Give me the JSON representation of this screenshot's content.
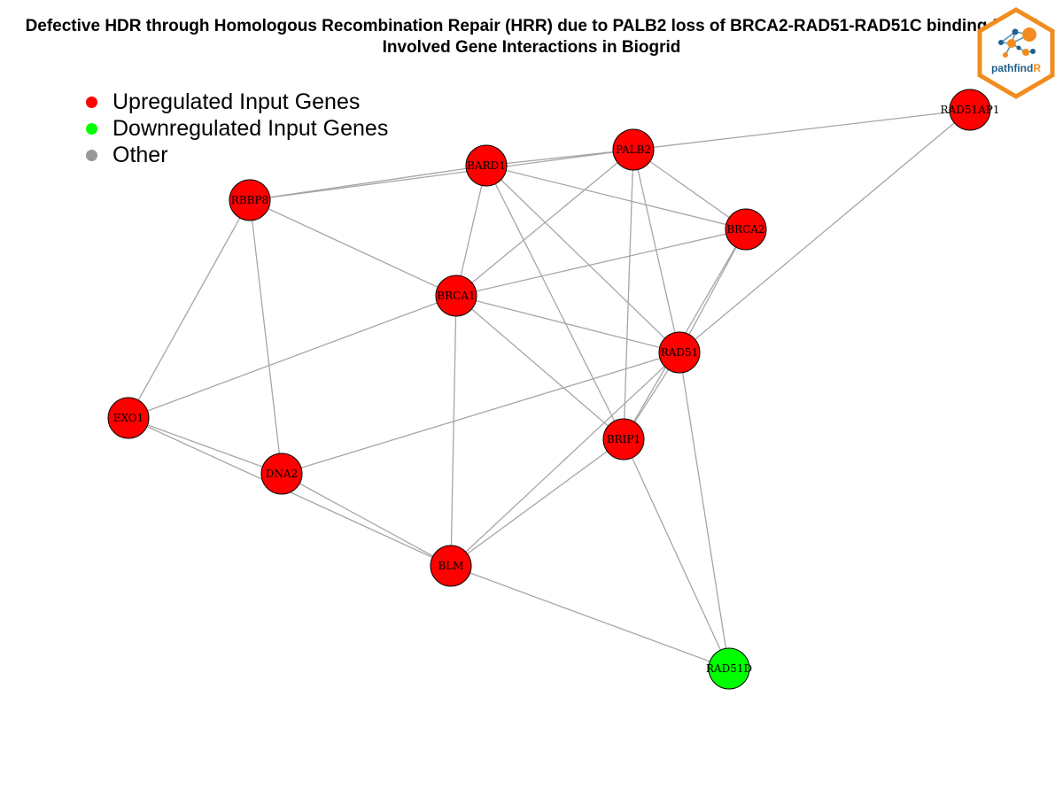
{
  "title": {
    "line1": "Defective HDR through Homologous Recombination Repair (HRR) due to PALB2 loss of BRCA2-RAD51-RAD51C binding functi",
    "line2": "Involved Gene Interactions in Biogrid"
  },
  "legend": [
    {
      "label": "Upregulated Input Genes",
      "color": "#ff0000"
    },
    {
      "label": "Downregulated Input Genes",
      "color": "#00ff00"
    },
    {
      "label": "Other",
      "color": "#999999"
    }
  ],
  "logo": {
    "text_main": "pathfind",
    "text_accent": "R",
    "border_color": "#f28c1e",
    "text_color": "#1f5f8b"
  },
  "colors": {
    "edge": "#a6a6a6",
    "node_border": "#000000"
  },
  "nodes": [
    {
      "id": "RAD51AP1",
      "status": "up"
    },
    {
      "id": "PALB2",
      "status": "up"
    },
    {
      "id": "BARD1",
      "status": "up"
    },
    {
      "id": "RBBP8",
      "status": "up"
    },
    {
      "id": "BRCA2",
      "status": "up"
    },
    {
      "id": "BRCA1",
      "status": "up"
    },
    {
      "id": "RAD51",
      "status": "up"
    },
    {
      "id": "EXO1",
      "status": "up"
    },
    {
      "id": "BRIP1",
      "status": "up"
    },
    {
      "id": "DNA2",
      "status": "up"
    },
    {
      "id": "BLM",
      "status": "up"
    },
    {
      "id": "RAD51D",
      "status": "down"
    }
  ],
  "edges": [
    [
      "RAD51AP1",
      "PALB2"
    ],
    [
      "RAD51AP1",
      "RAD51"
    ],
    [
      "PALB2",
      "BARD1"
    ],
    [
      "PALB2",
      "BRCA2"
    ],
    [
      "PALB2",
      "BRCA1"
    ],
    [
      "PALB2",
      "RAD51"
    ],
    [
      "PALB2",
      "BRIP1"
    ],
    [
      "BARD1",
      "RBBP8"
    ],
    [
      "BARD1",
      "BRCA2"
    ],
    [
      "BARD1",
      "BRCA1"
    ],
    [
      "BARD1",
      "RAD51"
    ],
    [
      "BARD1",
      "BRIP1"
    ],
    [
      "RBBP8",
      "PALB2"
    ],
    [
      "RBBP8",
      "BRCA1"
    ],
    [
      "RBBP8",
      "EXO1"
    ],
    [
      "RBBP8",
      "DNA2"
    ],
    [
      "BRCA2",
      "BRCA1"
    ],
    [
      "BRCA2",
      "RAD51"
    ],
    [
      "BRCA2",
      "BRIP1"
    ],
    [
      "BRCA1",
      "RAD51"
    ],
    [
      "BRCA1",
      "BRIP1"
    ],
    [
      "BRCA1",
      "EXO1"
    ],
    [
      "BRCA1",
      "BLM"
    ],
    [
      "RAD51",
      "DNA2"
    ],
    [
      "RAD51",
      "BLM"
    ],
    [
      "RAD51",
      "RAD51D"
    ],
    [
      "RAD51",
      "BRIP1"
    ],
    [
      "EXO1",
      "DNA2"
    ],
    [
      "EXO1",
      "BLM"
    ],
    [
      "BRIP1",
      "BLM"
    ],
    [
      "BRIP1",
      "RAD51D"
    ],
    [
      "DNA2",
      "BLM"
    ],
    [
      "BLM",
      "RAD51D"
    ]
  ]
}
